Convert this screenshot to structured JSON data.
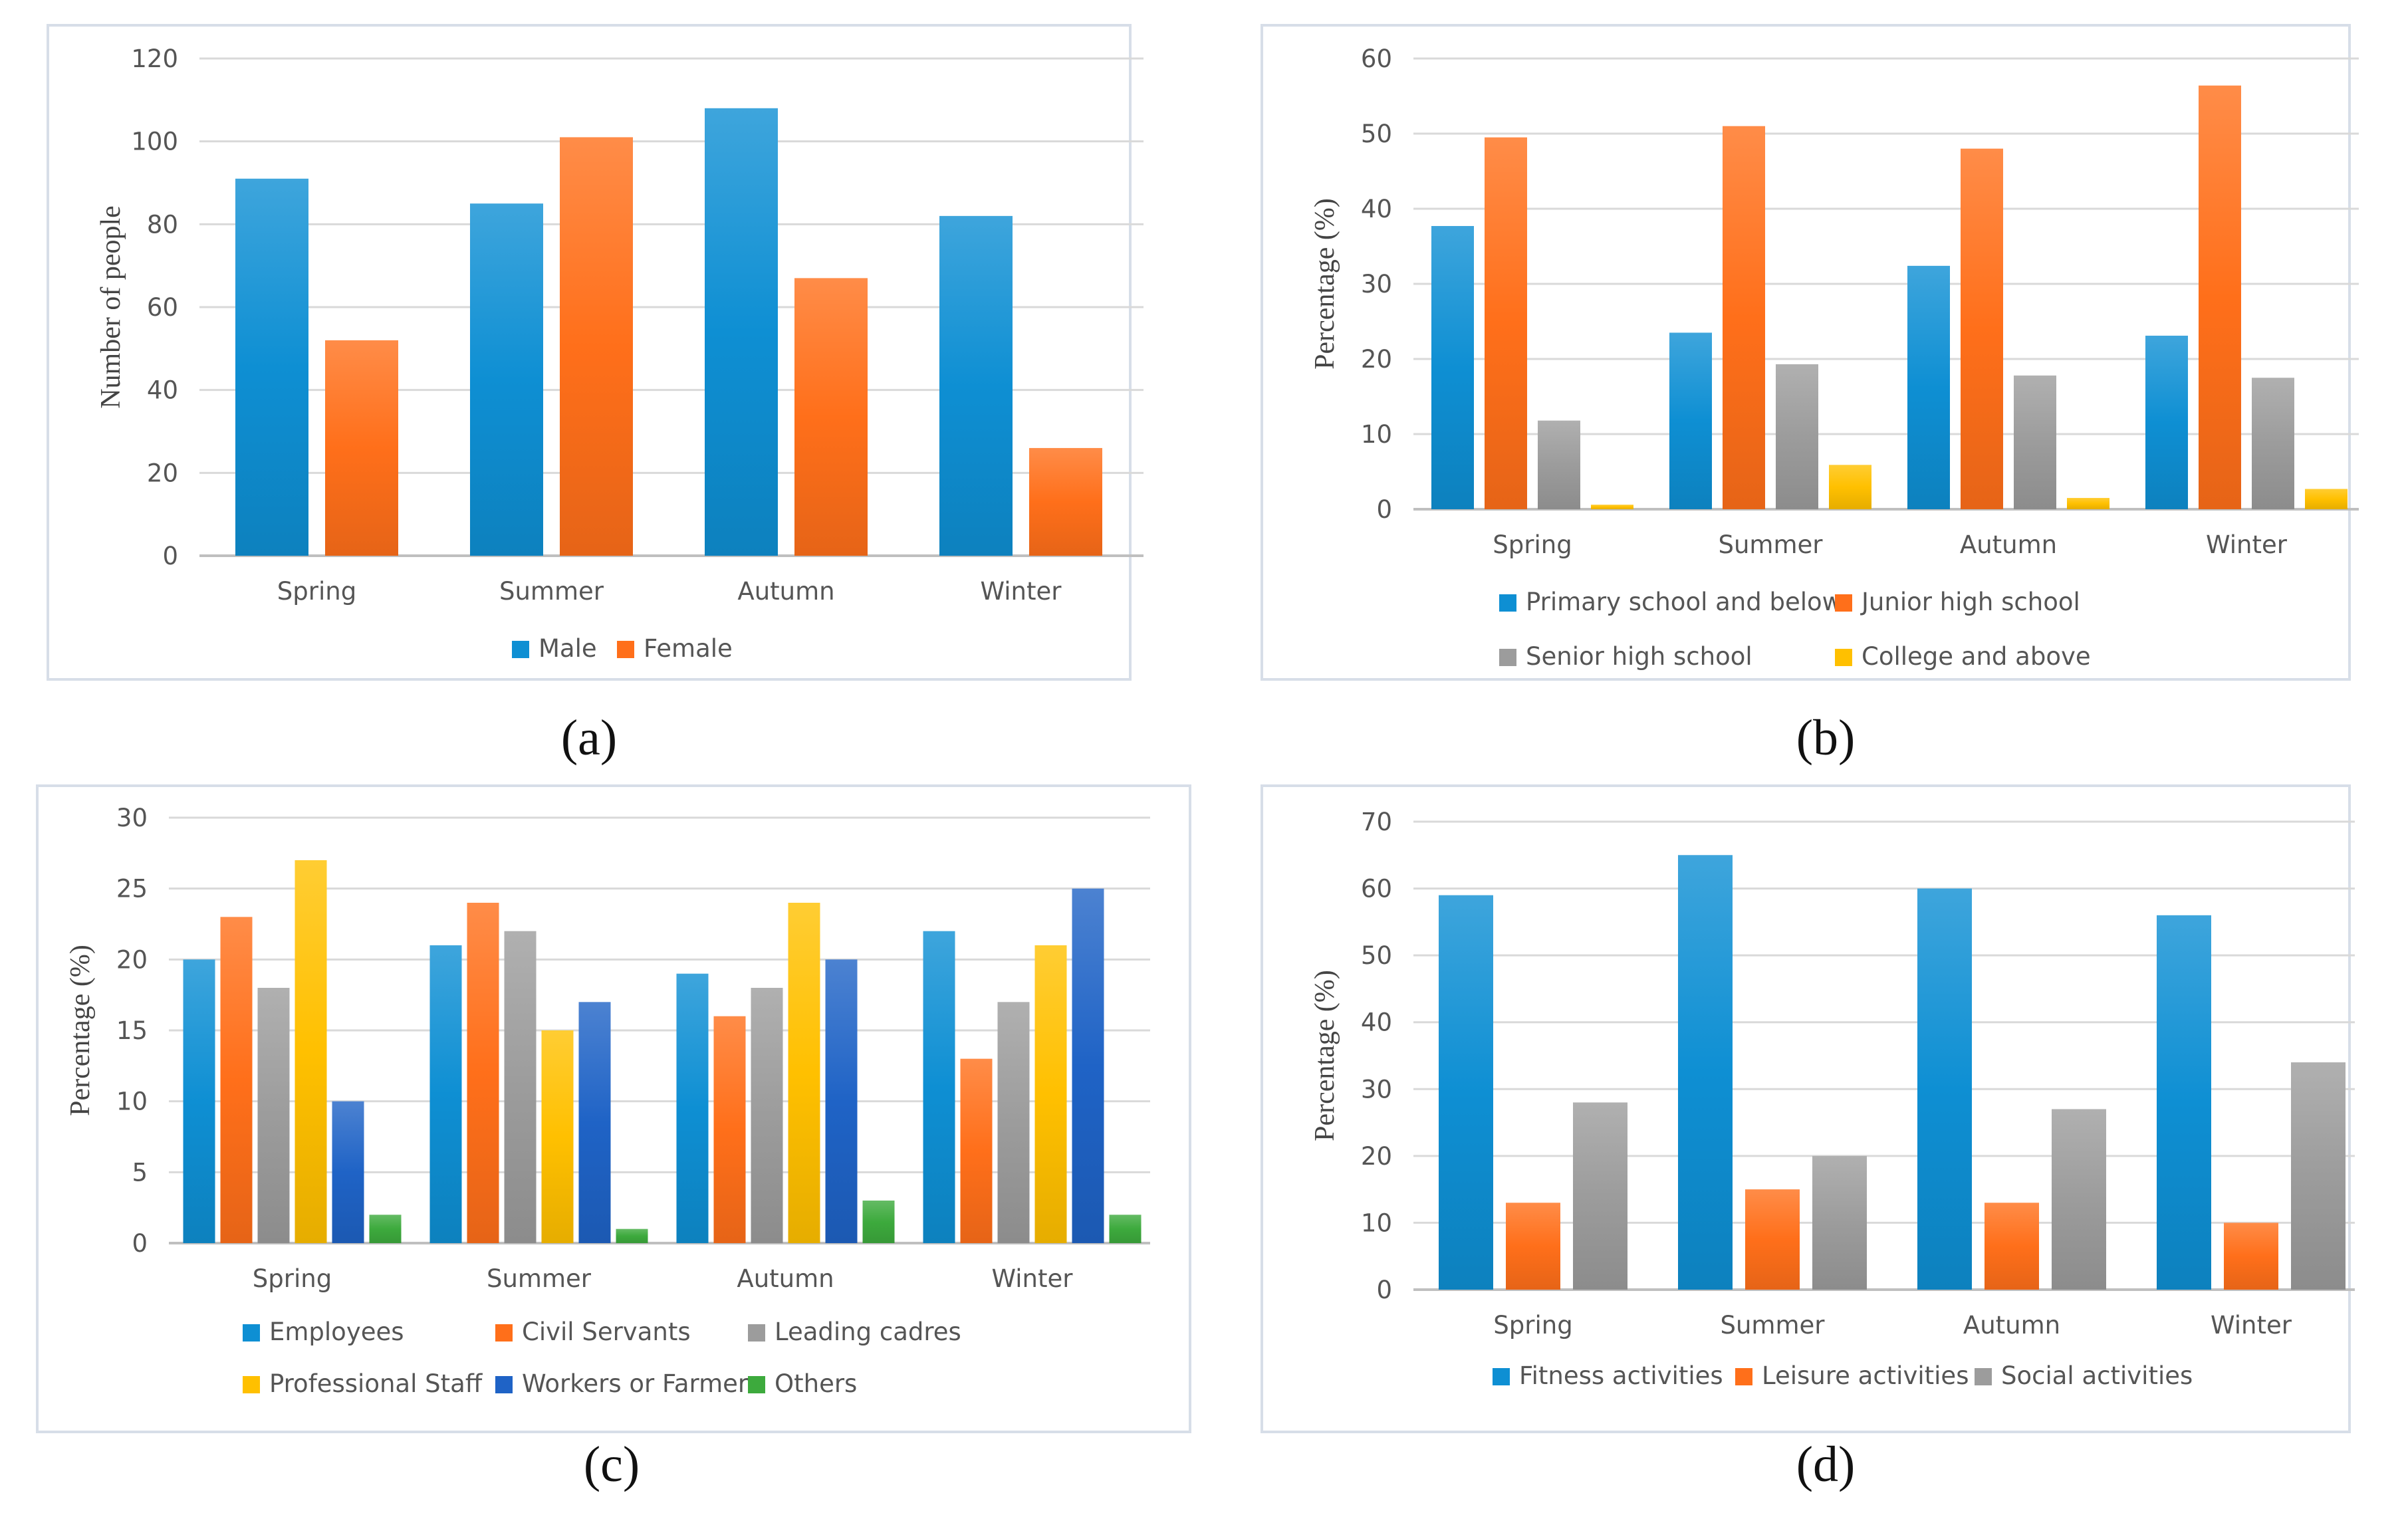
{
  "colors": {
    "blue": "#0E8FD3",
    "orange": "#FF6F1A",
    "gray": "#9C9C9C",
    "yellow": "#FFC000",
    "darkblue": "#1F63C6",
    "green": "#3DAA3D",
    "grid": "#D9D9D9",
    "axis": "#BFBFBF",
    "panel_border": "#D7DEE8",
    "text": "#555555"
  },
  "chart_data": [
    {
      "id": "a",
      "caption": "(a)",
      "type": "bar",
      "categories": [
        "Spring",
        "Summer",
        "Autumn",
        "Winter"
      ],
      "series": [
        {
          "name": "Male",
          "color": "blue",
          "values": [
            91,
            85,
            108,
            82
          ]
        },
        {
          "name": "Female",
          "color": "orange",
          "values": [
            52,
            101,
            67,
            26
          ]
        }
      ],
      "ylabel": "Number of people",
      "ylim": [
        0,
        120
      ],
      "yticks": [
        0,
        20,
        40,
        60,
        80,
        100,
        120
      ],
      "ytick_labels": [
        "0",
        "20",
        "40",
        "60",
        "80",
        "100",
        "120"
      ],
      "grid": true,
      "legend_position": "bottom"
    },
    {
      "id": "b",
      "caption": "(b)",
      "type": "bar",
      "categories": [
        "Spring",
        "Summer",
        "Autumn",
        "Winter"
      ],
      "series": [
        {
          "name": "Primary school and below",
          "color": "blue",
          "values": [
            37.7,
            23.5,
            32.4,
            23.1
          ]
        },
        {
          "name": "Junior high school",
          "color": "orange",
          "values": [
            49.5,
            51,
            48,
            56.4
          ]
        },
        {
          "name": "Senior high school",
          "color": "gray",
          "values": [
            11.8,
            19.3,
            17.8,
            17.5
          ]
        },
        {
          "name": "College and above",
          "color": "yellow",
          "values": [
            0.6,
            5.9,
            1.5,
            2.7
          ]
        }
      ],
      "ylabel": "Percentage (%)",
      "ylim": [
        0,
        60
      ],
      "yticks": [
        0,
        10,
        20,
        30,
        40,
        50,
        60
      ],
      "ytick_labels": [
        "0",
        "10",
        "20",
        "30",
        "40",
        "50",
        "60"
      ],
      "grid": true,
      "legend_position": "bottom"
    },
    {
      "id": "c",
      "caption": "(c)",
      "type": "bar",
      "categories": [
        "Spring",
        "Summer",
        "Autumn",
        "Winter"
      ],
      "series": [
        {
          "name": "Employees",
          "color": "blue",
          "values": [
            20,
            21,
            19,
            22
          ]
        },
        {
          "name": "Civil Servants",
          "color": "orange",
          "values": [
            23,
            24,
            16,
            13
          ]
        },
        {
          "name": "Leading cadres",
          "color": "gray",
          "values": [
            18,
            22,
            18,
            17
          ]
        },
        {
          "name": "Professional Staff",
          "color": "yellow",
          "values": [
            27,
            15,
            24,
            21
          ]
        },
        {
          "name": "Workers or Farmers",
          "color": "darkblue",
          "values": [
            10,
            17,
            20,
            25
          ]
        },
        {
          "name": "Others",
          "color": "green",
          "values": [
            2,
            1,
            3,
            2
          ]
        }
      ],
      "ylabel": "Percentage (%)",
      "ylim": [
        0,
        30
      ],
      "yticks": [
        0,
        5,
        10,
        15,
        20,
        25,
        30
      ],
      "ytick_labels": [
        "0",
        "5",
        "10",
        "15",
        "20",
        "25",
        "30"
      ],
      "grid": true,
      "legend_position": "bottom"
    },
    {
      "id": "d",
      "caption": "(d)",
      "type": "bar",
      "categories": [
        "Spring",
        "Summer",
        "Autumn",
        "Winter"
      ],
      "series": [
        {
          "name": "Fitness activities",
          "color": "blue",
          "values": [
            59,
            65,
            60,
            56
          ]
        },
        {
          "name": "Leisure activities",
          "color": "orange",
          "values": [
            13,
            15,
            13,
            10
          ]
        },
        {
          "name": "Social activities",
          "color": "gray",
          "values": [
            28,
            20,
            27,
            34
          ]
        }
      ],
      "ylabel": "Percentage (%)",
      "ylim": [
        0,
        70
      ],
      "yticks": [
        0,
        10,
        20,
        30,
        40,
        50,
        60,
        70
      ],
      "ytick_labels": [
        "0",
        "10",
        "20",
        "30",
        "40",
        "50",
        "60",
        "70"
      ],
      "grid": true,
      "legend_position": "bottom"
    }
  ]
}
